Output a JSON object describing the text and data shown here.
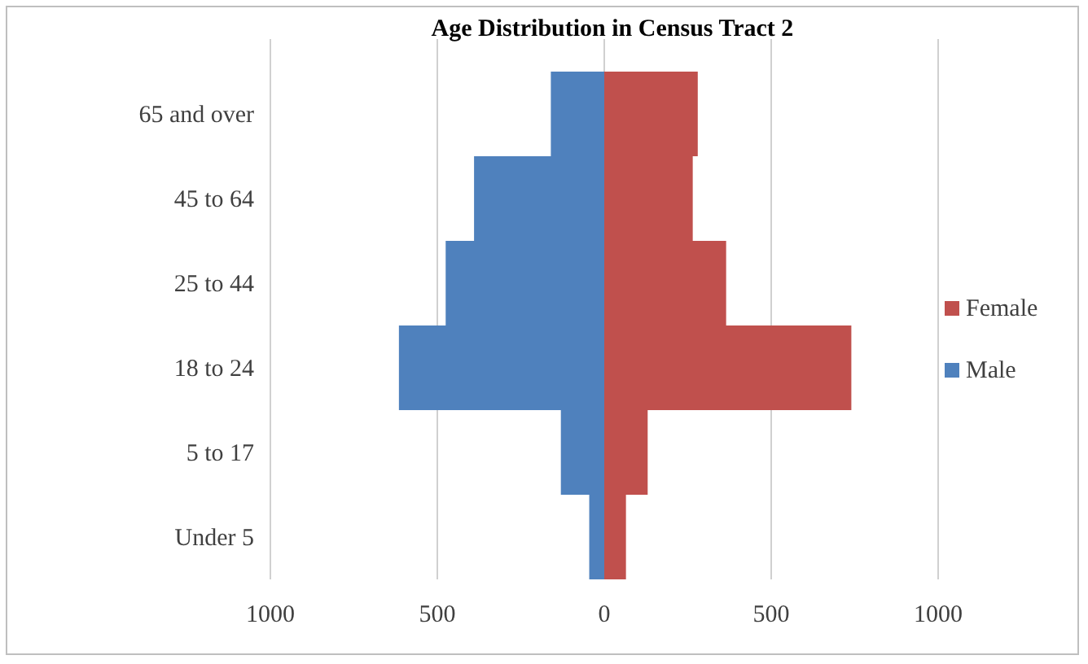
{
  "chart_data": {
    "type": "bar",
    "title": "Age Distribution in Census Tract 2",
    "orientation": "horizontal",
    "stacked": true,
    "categories": [
      "65 and over",
      "45 to 64",
      "25 to 44",
      "18 to 24",
      "5 to 17",
      "Under 5"
    ],
    "series": [
      {
        "name": "Male",
        "color": "#4f81bd",
        "values": [
          -160,
          -390,
          -475,
          -615,
          -130,
          -45
        ]
      },
      {
        "name": "Female",
        "color": "#c0504d",
        "values": [
          280,
          265,
          365,
          740,
          130,
          65
        ]
      }
    ],
    "xlim": [
      -1000,
      1000
    ],
    "xticks": [
      {
        "value": -1000,
        "label": "1000"
      },
      {
        "value": -500,
        "label": "500"
      },
      0,
      500,
      1000
    ],
    "grid": "x",
    "legend": "right"
  }
}
